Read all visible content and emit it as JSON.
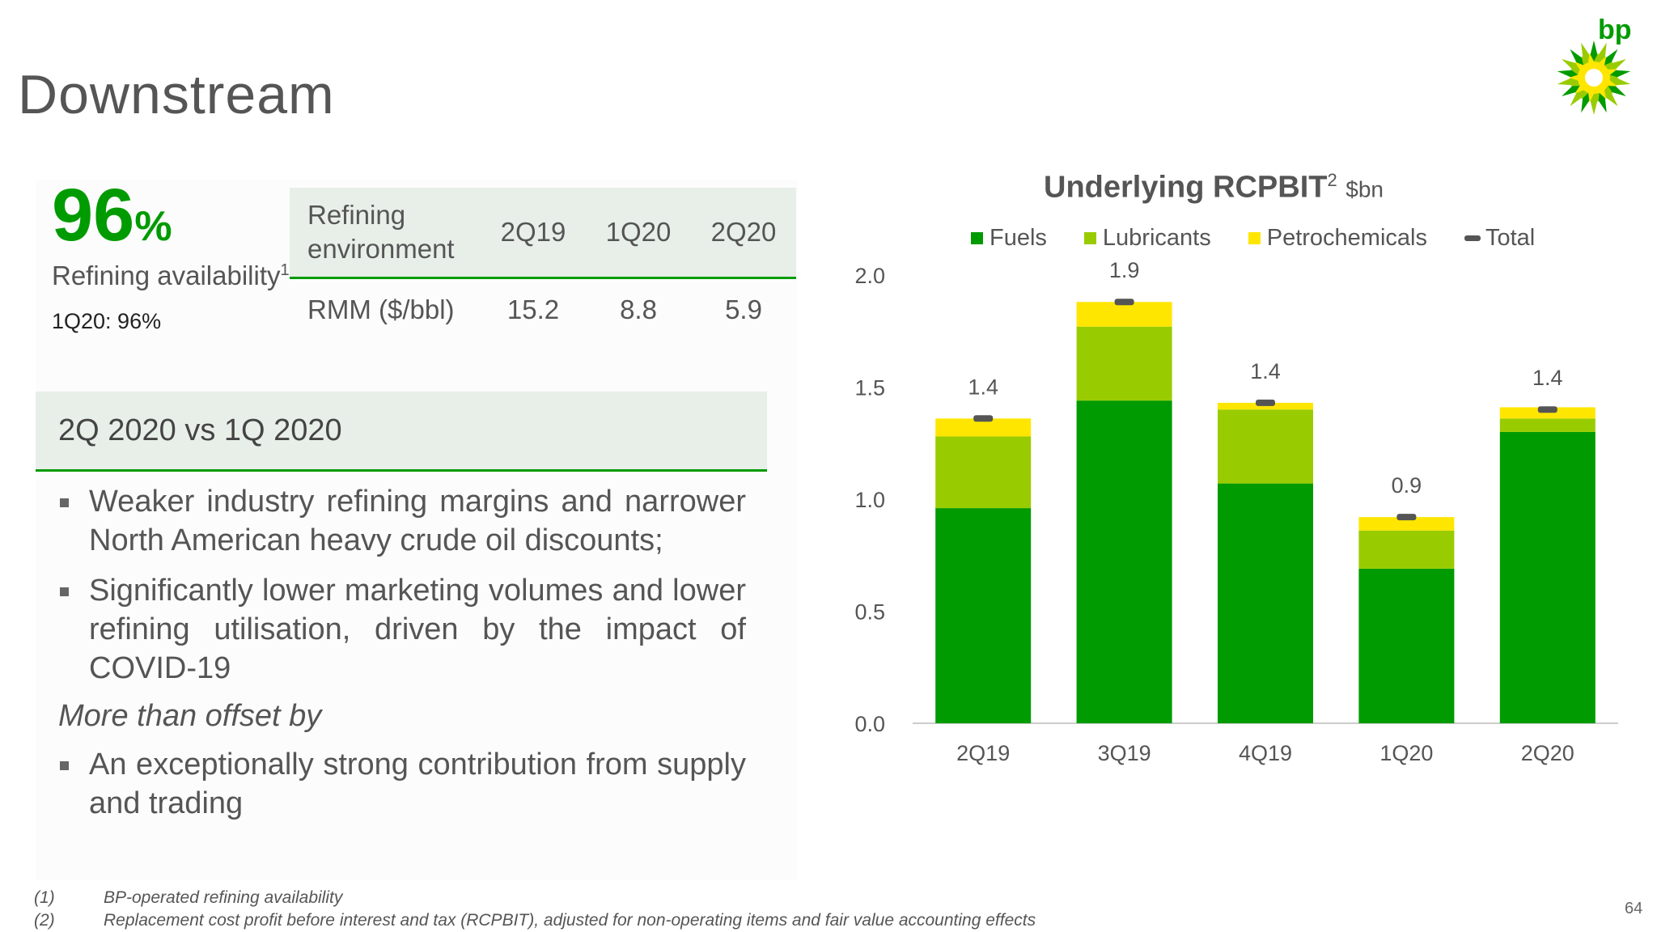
{
  "page": {
    "title": "Downstream",
    "logo_text": "bp",
    "page_number": "64"
  },
  "stat": {
    "value": "96",
    "unit": "%",
    "label": "Refining availability",
    "label_sup": "1",
    "sub": "1Q20: 96%"
  },
  "refining_table": {
    "header": [
      "Refining environment",
      "2Q19",
      "1Q20",
      "2Q20"
    ],
    "rows": [
      [
        "RMM ($/bbl)",
        "15.2",
        "8.8",
        "5.9"
      ]
    ]
  },
  "section": {
    "heading": "2Q 2020 vs 1Q 2020",
    "bullets": [
      "Weaker industry refining margins and narrower North American heavy crude oil discounts;",
      "Significantly lower marketing volumes and lower refining utilisation, driven by the impact of COVID-19"
    ],
    "offset_line": "More than offset by",
    "offset_bullets": [
      "An exceptionally strong contribution from supply and trading"
    ]
  },
  "footnotes": [
    {
      "num": "(1)",
      "text": "BP-operated refining availability"
    },
    {
      "num": "(2)",
      "text": "Replacement cost profit before interest and tax (RCPBIT), adjusted for non-operating items and fair value accounting effects"
    }
  ],
  "chart_data": {
    "type": "bar",
    "stacked": true,
    "title": "Underlying RCPBIT",
    "title_sup": "2",
    "unit": "$bn",
    "categories": [
      "2Q19",
      "3Q19",
      "4Q19",
      "1Q20",
      "2Q20"
    ],
    "series": [
      {
        "name": "Fuels",
        "color": "#009b00",
        "values": [
          0.96,
          1.44,
          1.07,
          0.69,
          1.3
        ]
      },
      {
        "name": "Lubricants",
        "color": "#99cc00",
        "values": [
          0.32,
          0.33,
          0.33,
          0.17,
          0.06
        ]
      },
      {
        "name": "Petrochemicals",
        "color": "#ffe600",
        "values": [
          0.08,
          0.11,
          0.03,
          0.06,
          0.05
        ]
      }
    ],
    "total": {
      "name": "Total",
      "color": "#555555",
      "values": [
        1.36,
        1.88,
        1.43,
        0.92,
        1.4
      ],
      "labels": [
        "1.4",
        "1.9",
        "1.4",
        "0.9",
        "1.4"
      ]
    },
    "ylim": [
      0,
      2.0
    ],
    "yticks": [
      "0.0",
      "0.5",
      "1.0",
      "1.5",
      "2.0"
    ],
    "grid": false,
    "legend_position": "top"
  }
}
